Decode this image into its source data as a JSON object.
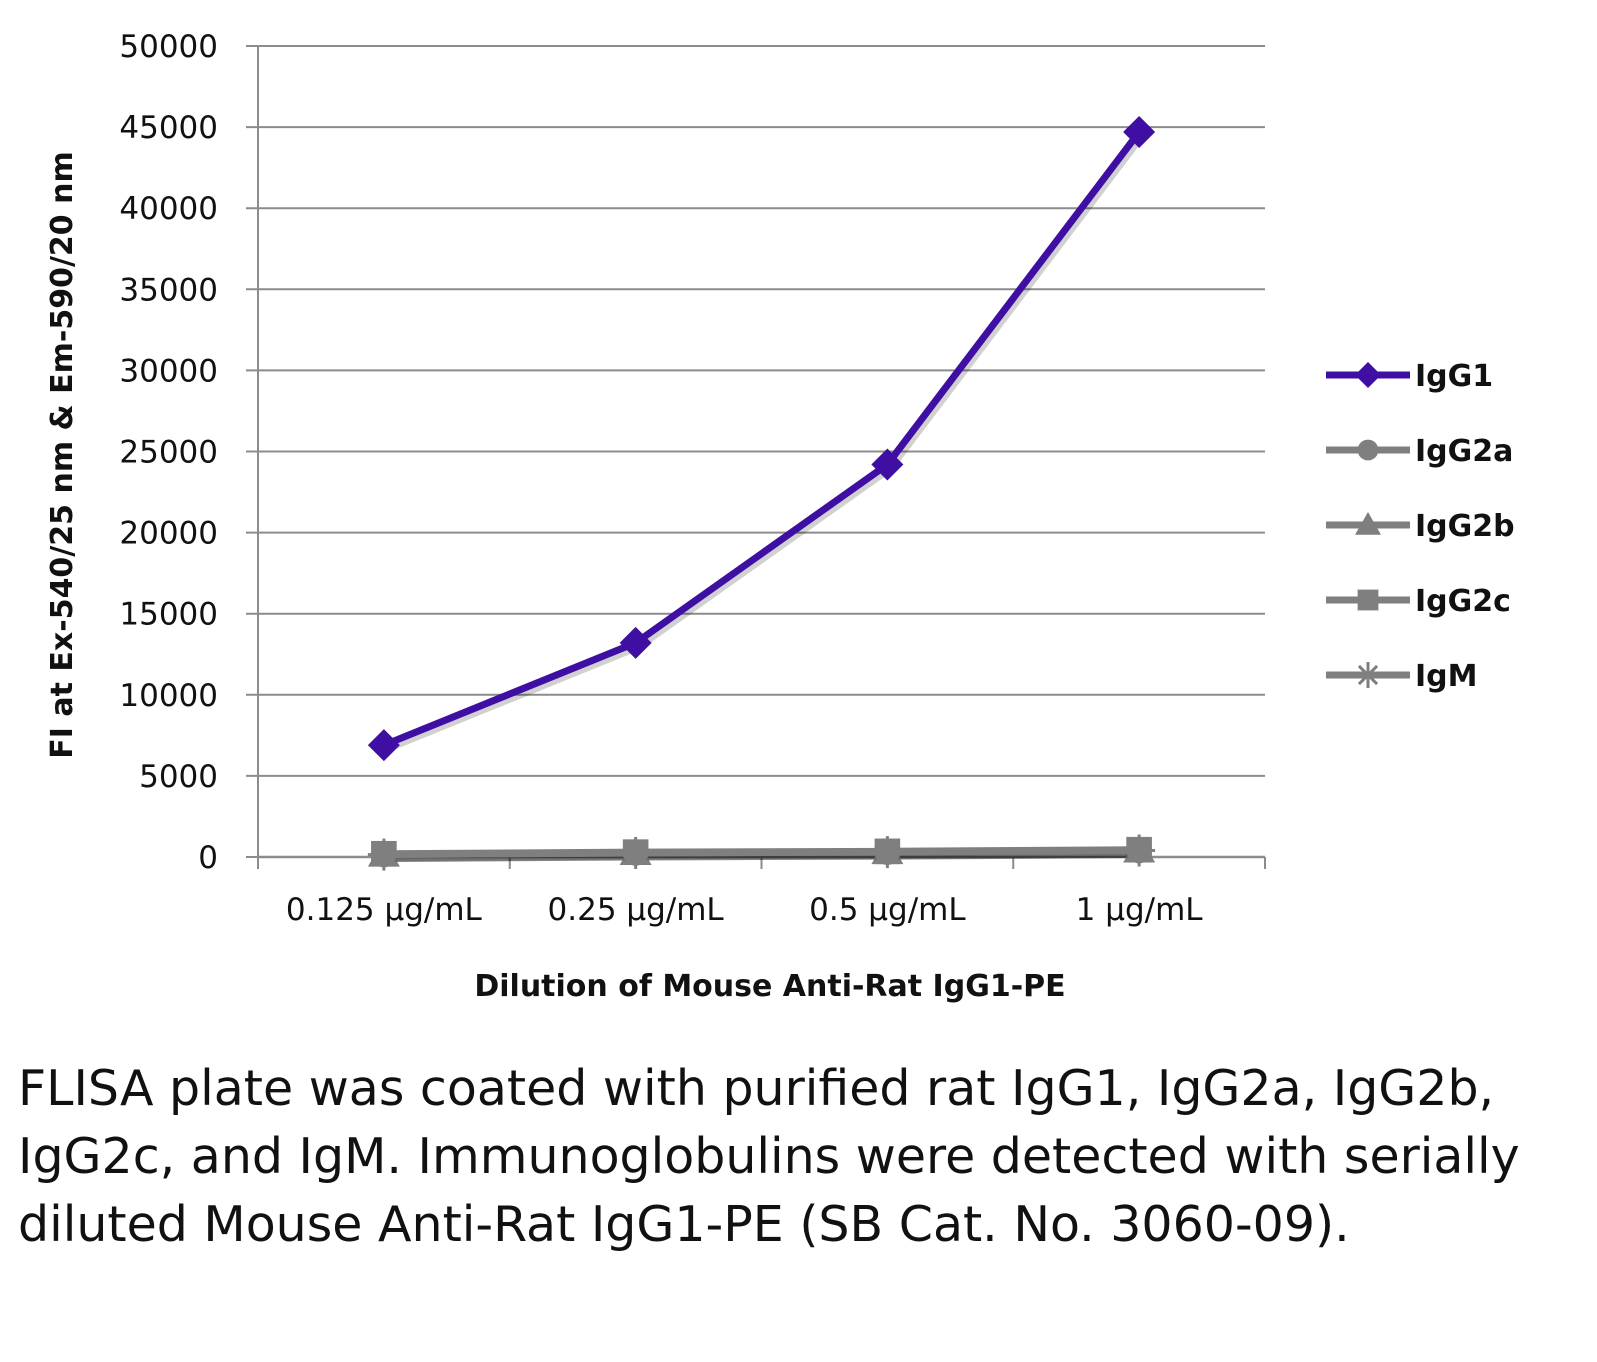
{
  "chart_data": {
    "type": "line",
    "categories": [
      "0.125 µg/mL",
      "0.25 µg/mL",
      "0.5 µg/mL",
      "1 µg/mL"
    ],
    "xlabel": "Dilution of Mouse Anti-Rat IgG1-PE",
    "ylabel": "FI at Ex-540/25 nm & Em-590/20 nm",
    "ylim": [
      0,
      50000
    ],
    "yticks": [
      0,
      5000,
      10000,
      15000,
      20000,
      25000,
      30000,
      35000,
      40000,
      45000,
      50000
    ],
    "grid": "horizontal",
    "legend": "right",
    "series": [
      {
        "name": "IgG1",
        "color": "#3f0fa3",
        "marker": "diamond",
        "values": [
          6900,
          13200,
          24200,
          44700
        ]
      },
      {
        "name": "IgG2a",
        "color": "#7f7f7f",
        "marker": "circle",
        "values": [
          150,
          250,
          300,
          400
        ]
      },
      {
        "name": "IgG2b",
        "color": "#7f7f7f",
        "marker": "triangle",
        "values": [
          150,
          250,
          300,
          400
        ]
      },
      {
        "name": "IgG2c",
        "color": "#7f7f7f",
        "marker": "square",
        "values": [
          200,
          300,
          350,
          450
        ]
      },
      {
        "name": "IgM",
        "color": "#7f7f7f",
        "marker": "star",
        "values": [
          150,
          250,
          300,
          400
        ]
      }
    ]
  },
  "caption": "FLISA plate was coated with purified rat IgG1, IgG2a, IgG2b, IgG2c, and IgM.  Immunoglobulins were detected with serially diluted Mouse Anti-Rat IgG1-PE (SB Cat. No. 3060-09)."
}
